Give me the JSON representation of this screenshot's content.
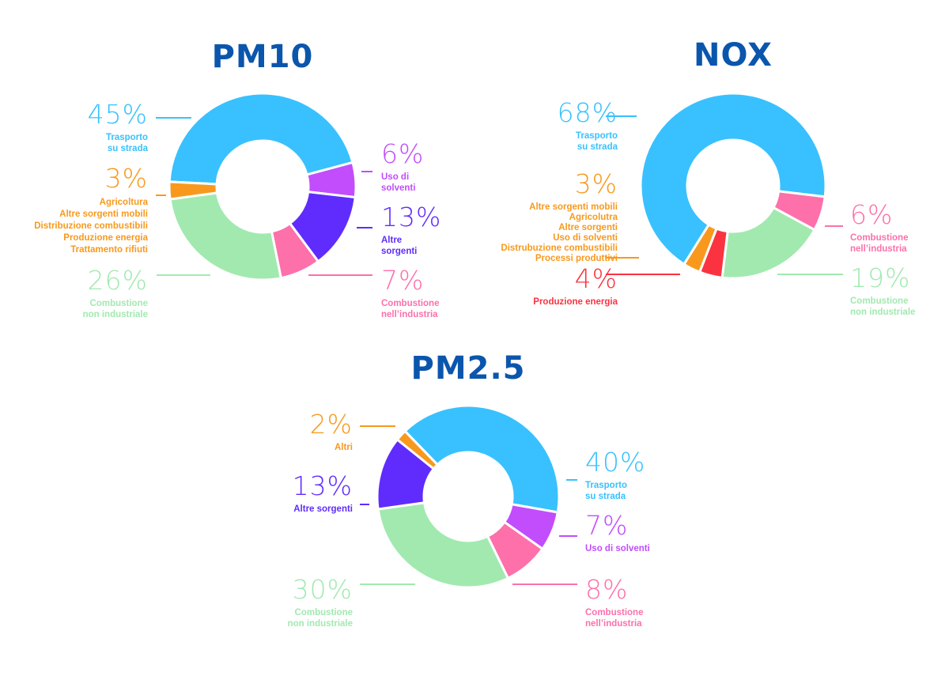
{
  "chart_data": [
    {
      "type": "pie",
      "donut": true,
      "title": "PM10",
      "slices": [
        {
          "value": 45,
          "label": "45%",
          "lines": [
            "Trasporto",
            "su strada"
          ],
          "color": "#38c1fe"
        },
        {
          "value": 6,
          "label": "6%",
          "lines": [
            "Uso di",
            "solventi"
          ],
          "color": "#c14dfd"
        },
        {
          "value": 13,
          "label": "13%",
          "lines": [
            "Altre",
            "sorgenti"
          ],
          "color": "#5f2cfd"
        },
        {
          "value": 7,
          "label": "7%",
          "lines": [
            "Combustione",
            "nell’industria"
          ],
          "color": "#fd70aa"
        },
        {
          "value": 26,
          "label": "26%",
          "lines": [
            "Combustione",
            "non industriale"
          ],
          "color": "#a2e9b0"
        },
        {
          "value": 3,
          "label": "3%",
          "lines": [
            "Agricoltura",
            "Altre sorgenti mobili",
            "Distribuzione combustibili",
            "Produzione energia",
            "Trattamento rifiuti"
          ],
          "color": "#f8991d"
        }
      ]
    },
    {
      "type": "pie",
      "donut": true,
      "title": "NOX",
      "slices": [
        {
          "value": 68,
          "label": "68%",
          "lines": [
            "Trasporto",
            "su strada"
          ],
          "color": "#38c1fe"
        },
        {
          "value": 6,
          "label": "6%",
          "lines": [
            "Combustione",
            "nell’industria"
          ],
          "color": "#fd70aa"
        },
        {
          "value": 19,
          "label": "19%",
          "lines": [
            "Combustione",
            "non industriale"
          ],
          "color": "#a2e9b0"
        },
        {
          "value": 4,
          "label": "4%",
          "lines": [
            "Produzione energia"
          ],
          "color": "#fb3340"
        },
        {
          "value": 3,
          "label": "3%",
          "lines": [
            "Altre sorgenti mobili",
            "Agricolutra",
            "Altre sorgenti",
            "Uso di solventi",
            "Distrubuzione combustibili",
            "Processi produttivi"
          ],
          "color": "#f8991d"
        }
      ]
    },
    {
      "type": "pie",
      "donut": true,
      "title": "PM2.5",
      "slices": [
        {
          "value": 40,
          "label": "40%",
          "lines": [
            "Trasporto",
            "su strada"
          ],
          "color": "#38c1fe"
        },
        {
          "value": 7,
          "label": "7%",
          "lines": [
            "Uso di solventi"
          ],
          "color": "#c14dfd"
        },
        {
          "value": 8,
          "label": "8%",
          "lines": [
            "Combustione",
            "nell’industria"
          ],
          "color": "#fd70aa"
        },
        {
          "value": 30,
          "label": "30%",
          "lines": [
            "Combustione",
            "non industriale"
          ],
          "color": "#a2e9b0"
        },
        {
          "value": 13,
          "label": "13%",
          "lines": [
            "Altre sorgenti"
          ],
          "color": "#5f2cfd"
        },
        {
          "value": 2,
          "label": "2%",
          "lines": [
            "Altri"
          ],
          "color": "#f8991d"
        }
      ]
    }
  ]
}
